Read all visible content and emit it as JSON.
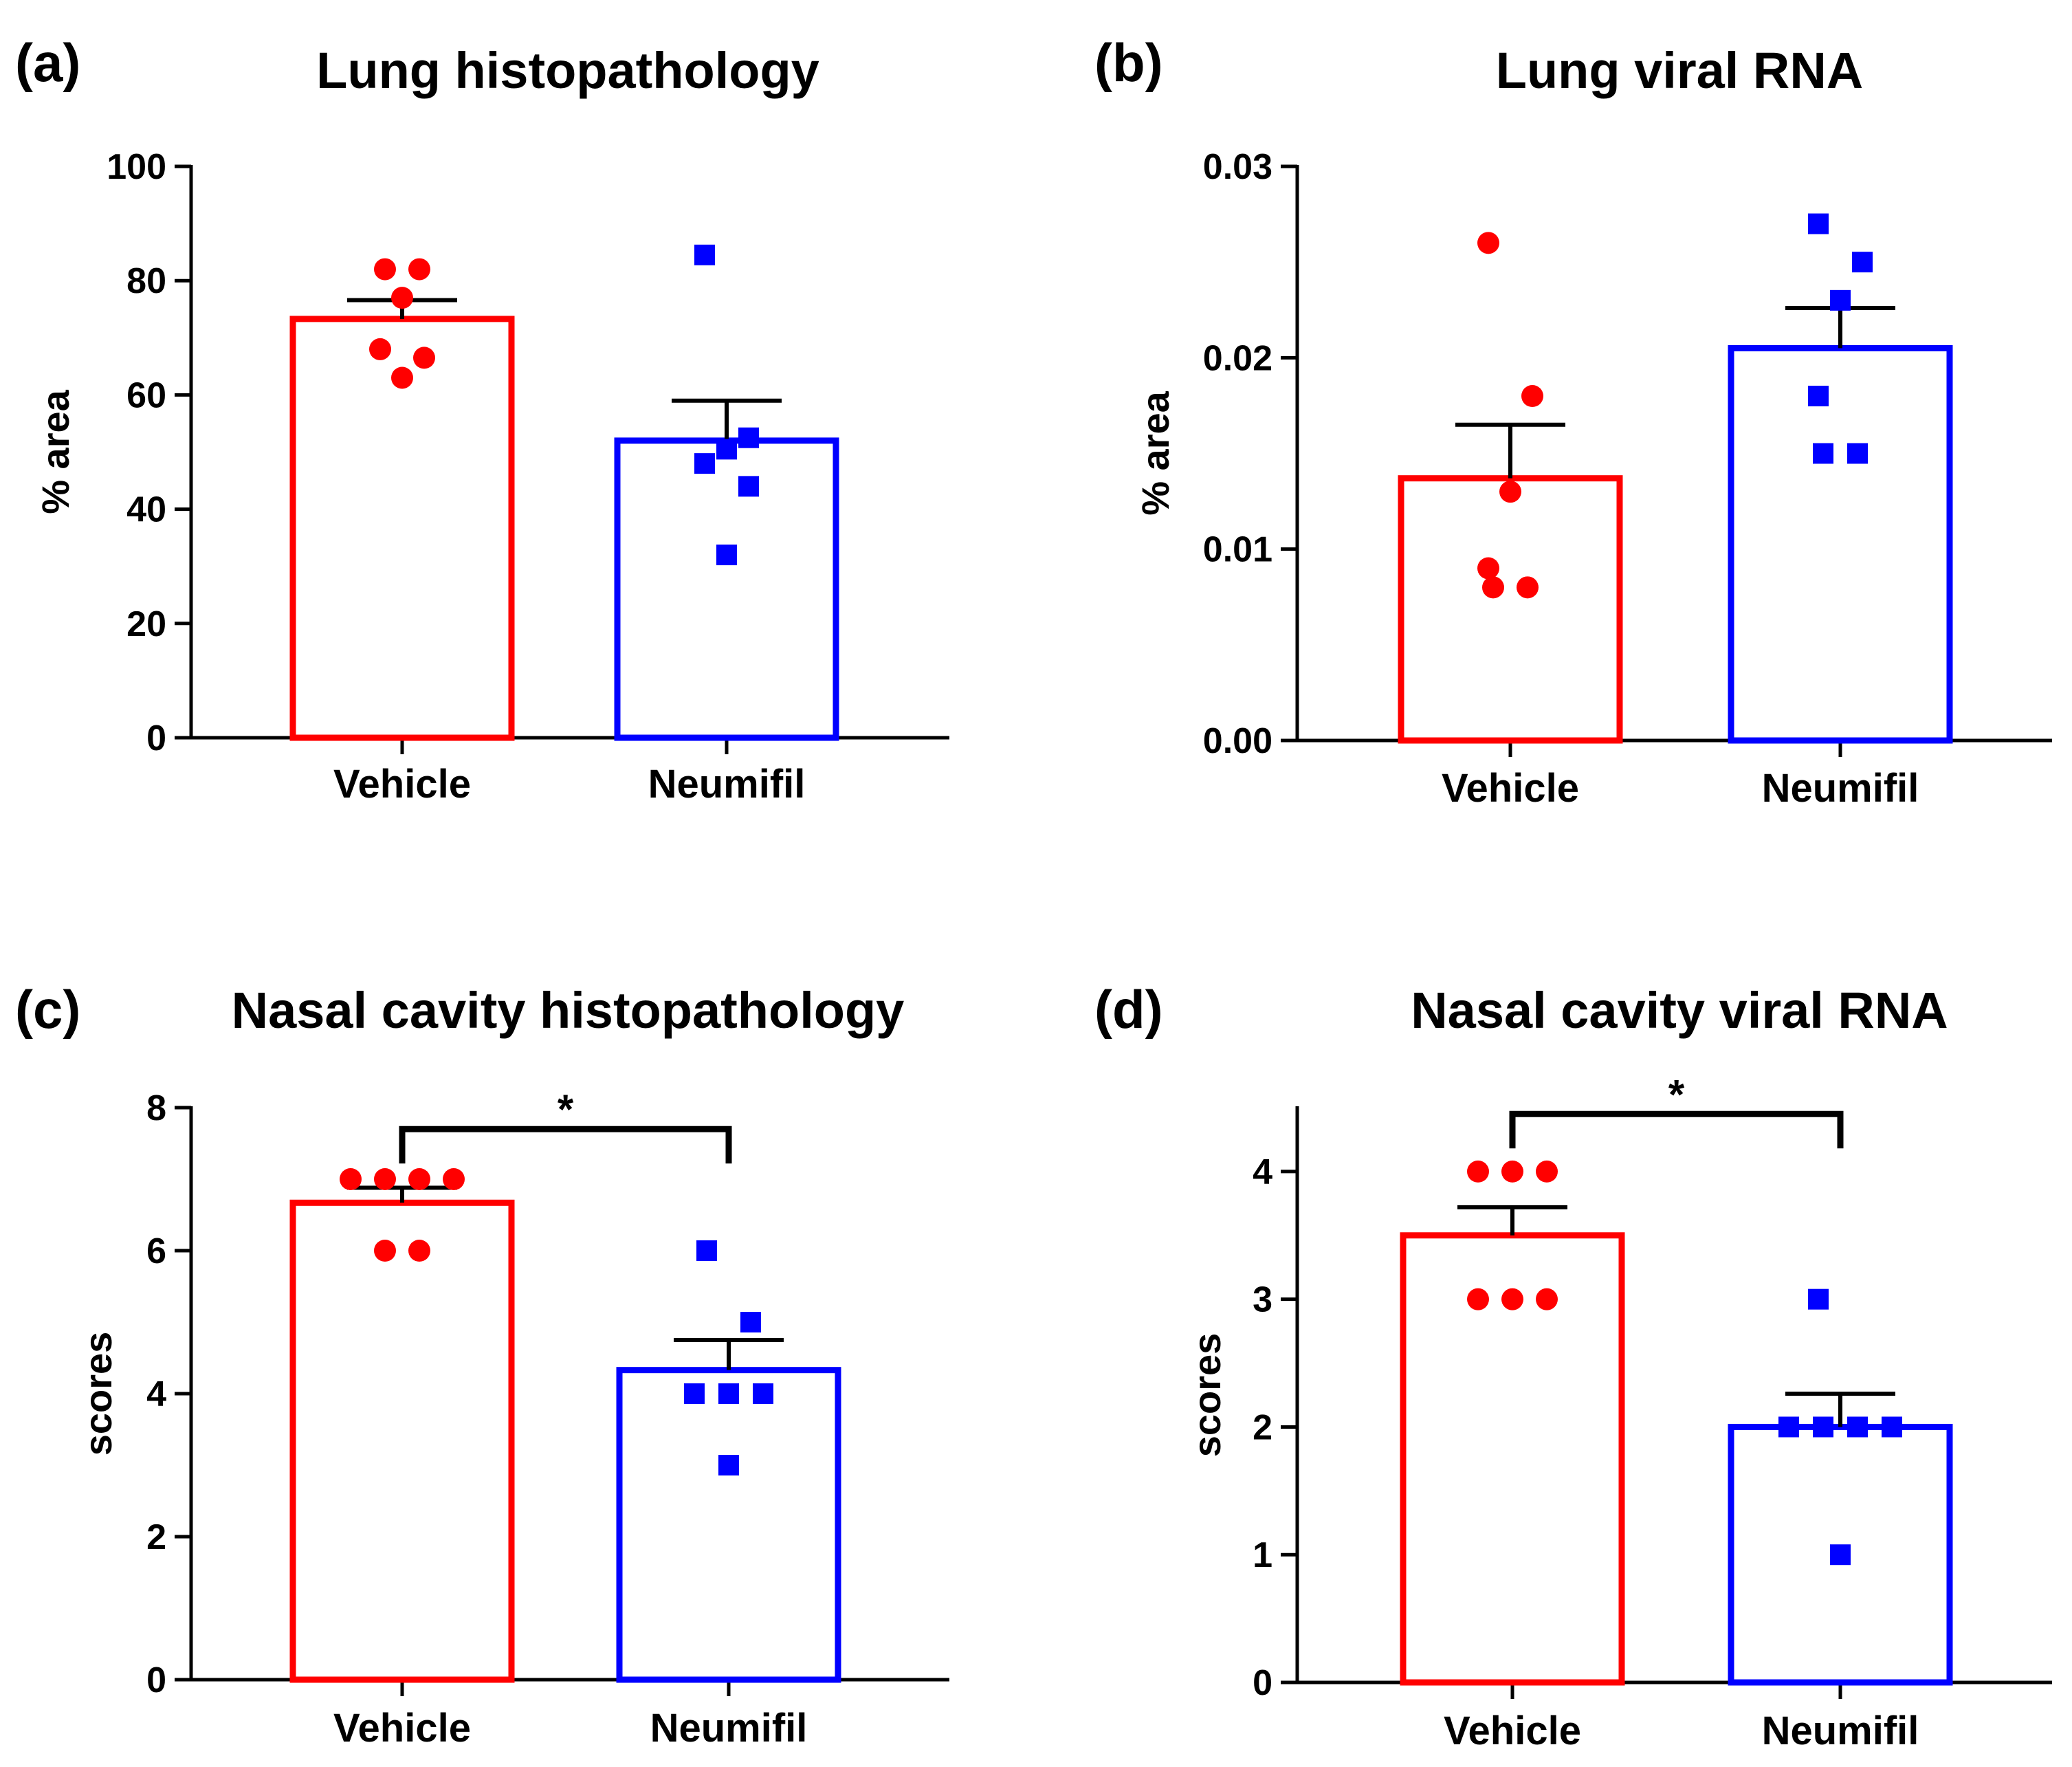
{
  "chart_data": [
    {
      "type": "bar",
      "panel_label": "(a)",
      "title": "Lung histopathology",
      "xlabel": "",
      "ylabel": "% area",
      "ylim": [
        0,
        100
      ],
      "yticks": [
        0,
        20,
        40,
        60,
        80,
        100
      ],
      "ytick_labels": [
        "0",
        "20",
        "40",
        "60",
        "80",
        "100"
      ],
      "categories": [
        "Vehicle",
        "Neumifil"
      ],
      "series": [
        {
          "name": "Vehicle",
          "mean": 73.3,
          "sem": 3.3,
          "color": "#ff0000",
          "marker": "circle",
          "points": [
            82,
            82,
            77,
            68,
            66.5,
            63
          ]
        },
        {
          "name": "Neumifil",
          "mean": 52,
          "sem": 7,
          "color": "#0000ff",
          "marker": "square",
          "points": [
            84.5,
            52.5,
            50.5,
            48,
            44,
            32
          ]
        }
      ],
      "significance": null
    },
    {
      "type": "bar",
      "panel_label": "(b)",
      "title": "Lung viral RNA",
      "xlabel": "",
      "ylabel": "% area",
      "ylim": [
        0,
        0.03
      ],
      "yticks": [
        0,
        0.01,
        0.02,
        0.03
      ],
      "ytick_labels": [
        "0.00",
        "0.01",
        "0.02",
        "0.03"
      ],
      "categories": [
        "Vehicle",
        "Neumifil"
      ],
      "series": [
        {
          "name": "Vehicle",
          "mean": 0.0137,
          "sem": 0.0028,
          "color": "#ff0000",
          "marker": "circle",
          "points": [
            0.026,
            0.018,
            0.013,
            0.009,
            0.008,
            0.008
          ]
        },
        {
          "name": "Neumifil",
          "mean": 0.0205,
          "sem": 0.0021,
          "color": "#0000ff",
          "marker": "square",
          "points": [
            0.027,
            0.025,
            0.023,
            0.018,
            0.015,
            0.015
          ]
        }
      ],
      "significance": null
    },
    {
      "type": "bar",
      "panel_label": "(c)",
      "title": "Nasal cavity histopathology",
      "xlabel": "",
      "ylabel": "scores",
      "ylim": [
        0,
        8
      ],
      "yticks": [
        0,
        2,
        4,
        6,
        8
      ],
      "ytick_labels": [
        "0",
        "2",
        "4",
        "6",
        "8"
      ],
      "categories": [
        "Vehicle",
        "Neumifil"
      ],
      "series": [
        {
          "name": "Vehicle",
          "mean": 6.67,
          "sem": 0.21,
          "color": "#ff0000",
          "marker": "circle",
          "points": [
            7,
            7,
            7,
            7,
            6,
            6
          ]
        },
        {
          "name": "Neumifil",
          "mean": 4.33,
          "sem": 0.42,
          "color": "#0000ff",
          "marker": "square",
          "points": [
            6,
            5,
            4,
            4,
            4,
            3
          ]
        }
      ],
      "significance": {
        "label": "*",
        "y": 7.7
      }
    },
    {
      "type": "bar",
      "panel_label": "(d)",
      "title": "Nasal cavity viral RNA",
      "xlabel": "",
      "ylabel": "scores",
      "ylim": [
        0,
        4.5
      ],
      "yticks": [
        0,
        1,
        2,
        3,
        4
      ],
      "ytick_labels": [
        "0",
        "1",
        "2",
        "3",
        "4"
      ],
      "categories": [
        "Vehicle",
        "Neumifil"
      ],
      "series": [
        {
          "name": "Vehicle",
          "mean": 3.5,
          "sem": 0.22,
          "color": "#ff0000",
          "marker": "circle",
          "points": [
            4,
            4,
            4,
            3,
            3,
            3
          ]
        },
        {
          "name": "Neumifil",
          "mean": 2.0,
          "sem": 0.26,
          "color": "#0000ff",
          "marker": "square",
          "points": [
            3,
            2,
            2,
            2,
            2,
            1
          ]
        }
      ],
      "significance": {
        "label": "*",
        "y": 4.45
      }
    }
  ]
}
